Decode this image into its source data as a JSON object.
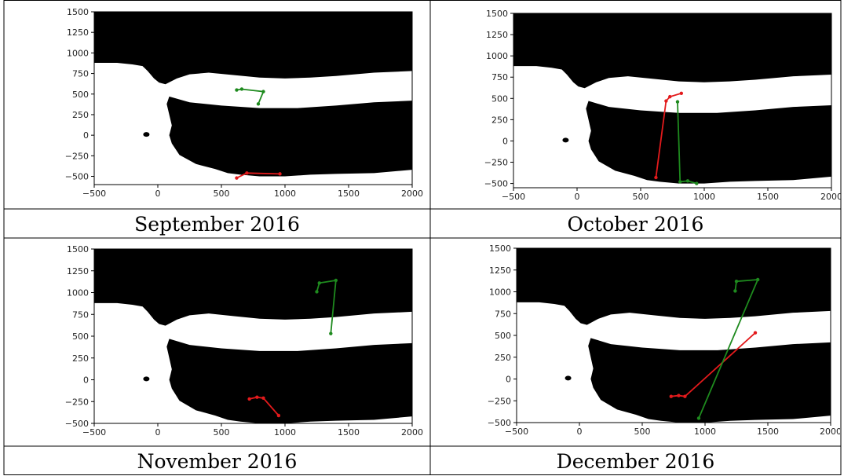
{
  "captions": [
    "September 2016",
    "October 2016",
    "November 2016",
    "December 2016"
  ],
  "colors": {
    "series_1": "#e31a1c",
    "series_2": "#1e8a1e",
    "land": "#000000",
    "sea": "#ffffff"
  },
  "chart_data": [
    {
      "type": "line",
      "caption": "September 2016",
      "xlim": [
        -500,
        2000
      ],
      "ylim": [
        -600,
        1500
      ],
      "xticks": [
        -500,
        0,
        500,
        1000,
        1500,
        2000
      ],
      "yticks": [
        -500,
        -250,
        0,
        250,
        500,
        750,
        1000,
        1250,
        1500
      ],
      "series": [
        {
          "color": "#e31a1c",
          "x": [
            620,
            700,
            960
          ],
          "y": [
            -520,
            -460,
            -470
          ]
        },
        {
          "color": "#1e8a1e",
          "x": [
            620,
            660,
            830,
            790
          ],
          "y": [
            550,
            560,
            530,
            380
          ]
        }
      ]
    },
    {
      "type": "line",
      "caption": "October 2016",
      "xlim": [
        -500,
        2000
      ],
      "ylim": [
        -550,
        1500
      ],
      "xticks": [
        -500,
        0,
        500,
        1000,
        1500,
        2000
      ],
      "yticks": [
        -500,
        -250,
        0,
        250,
        500,
        750,
        1000,
        1250,
        1500
      ],
      "series": [
        {
          "color": "#e31a1c",
          "x": [
            620,
            700,
            730,
            820
          ],
          "y": [
            -430,
            470,
            520,
            560
          ]
        },
        {
          "color": "#1e8a1e",
          "x": [
            790,
            810,
            870,
            940
          ],
          "y": [
            460,
            -480,
            -470,
            -500
          ]
        }
      ]
    },
    {
      "type": "line",
      "caption": "November 2016",
      "xlim": [
        -500,
        2000
      ],
      "ylim": [
        -500,
        1500
      ],
      "xticks": [
        -500,
        0,
        500,
        1000,
        1500,
        2000
      ],
      "yticks": [
        -500,
        -250,
        0,
        250,
        500,
        750,
        1000,
        1250,
        1500
      ],
      "series": [
        {
          "color": "#e31a1c",
          "x": [
            720,
            780,
            830,
            950
          ],
          "y": [
            -220,
            -200,
            -210,
            -410
          ]
        },
        {
          "color": "#1e8a1e",
          "x": [
            1250,
            1270,
            1400,
            1360
          ],
          "y": [
            1010,
            1110,
            1140,
            530
          ]
        }
      ]
    },
    {
      "type": "line",
      "caption": "December 2016",
      "xlim": [
        -500,
        2000
      ],
      "ylim": [
        -500,
        1500
      ],
      "xticks": [
        -500,
        0,
        500,
        1000,
        1500,
        2000
      ],
      "yticks": [
        -500,
        -250,
        0,
        250,
        500,
        750,
        1000,
        1250,
        1500
      ],
      "series": [
        {
          "color": "#e31a1c",
          "x": [
            730,
            790,
            840,
            1400
          ],
          "y": [
            -200,
            -190,
            -200,
            530
          ]
        },
        {
          "color": "#1e8a1e",
          "x": [
            1240,
            1250,
            1420,
            950
          ],
          "y": [
            1010,
            1120,
            1140,
            -450
          ]
        }
      ]
    }
  ]
}
